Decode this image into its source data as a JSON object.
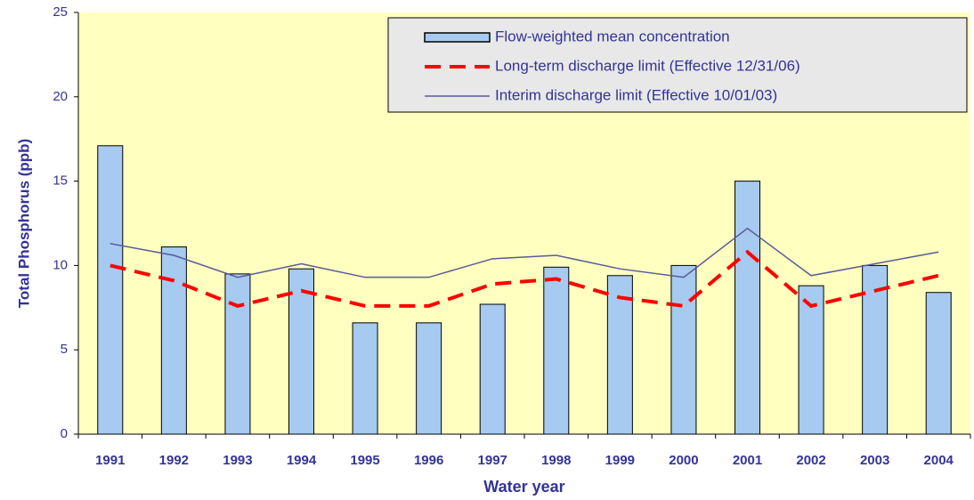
{
  "chart_data": {
    "type": "bar",
    "x_label": "Water year",
    "y_label": "Total Phosphorus (ppb)",
    "categories": [
      "1991",
      "1992",
      "1993",
      "1994",
      "1995",
      "1996",
      "1997",
      "1998",
      "1999",
      "2000",
      "2001",
      "2002",
      "2003",
      "2004"
    ],
    "series": [
      {
        "name": "Flow-weighted mean concentration",
        "type": "bar",
        "color": "#a6caf0",
        "values": [
          17.1,
          11.1,
          9.5,
          9.8,
          6.6,
          6.6,
          7.7,
          9.9,
          9.4,
          10.0,
          15.0,
          8.8,
          10.0,
          8.4
        ]
      },
      {
        "name": "Long-term discharge limit (Effective 12/31/06)",
        "type": "line",
        "dashed": true,
        "color": "#ff0000",
        "values": [
          10.0,
          9.1,
          7.6,
          8.5,
          7.6,
          7.6,
          8.9,
          9.2,
          8.1,
          7.6,
          10.8,
          7.6,
          8.5,
          9.4
        ]
      },
      {
        "name": "Interim discharge limit (Effective 10/01/03)",
        "type": "line",
        "dashed": false,
        "color": "#5a5a9a",
        "values": [
          11.3,
          10.6,
          9.3,
          10.1,
          9.3,
          9.3,
          10.4,
          10.6,
          9.8,
          9.3,
          12.2,
          9.4,
          10.1,
          10.8
        ]
      }
    ],
    "ylim": [
      0,
      25
    ],
    "yticks": [
      0,
      5,
      10,
      15,
      20,
      25
    ],
    "grid": false
  }
}
